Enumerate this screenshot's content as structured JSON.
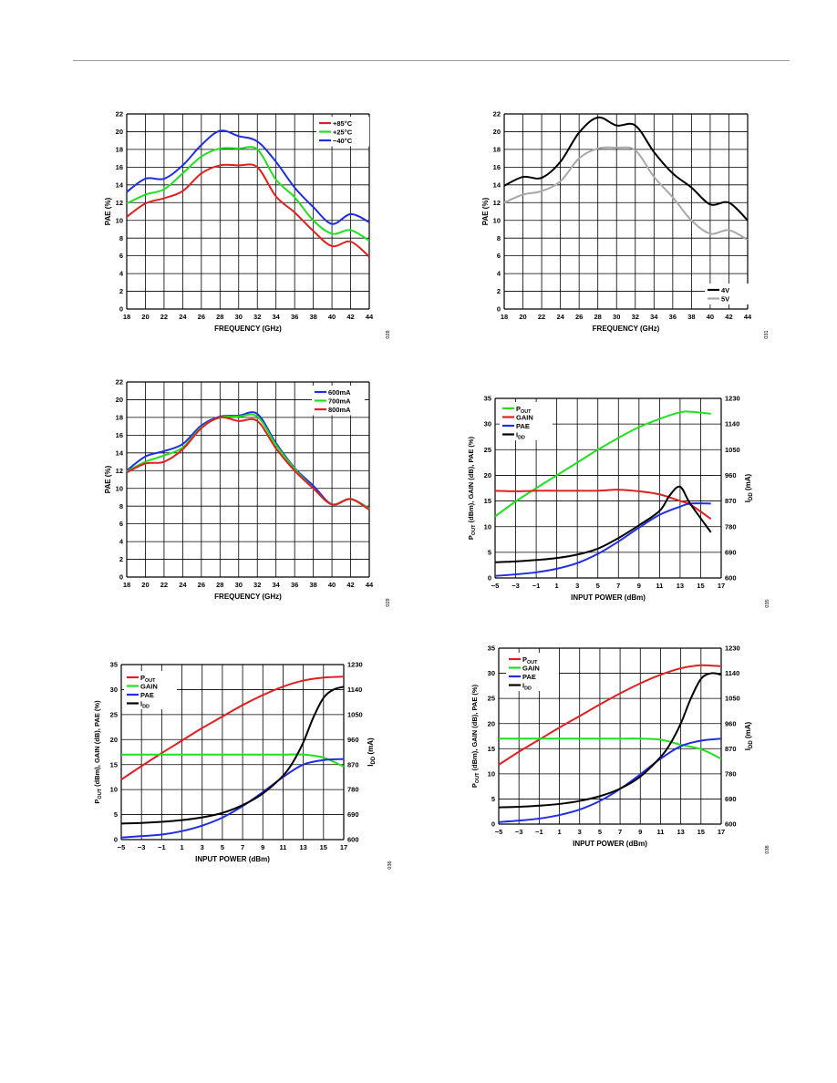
{
  "chart_data": [
    {
      "type": "line",
      "xlabel": "FREQUENCY (GHz)",
      "ylabel": "PAE (%)",
      "xlim": [
        18,
        44
      ],
      "ylim": [
        0,
        22
      ],
      "xticks": [
        18,
        20,
        22,
        24,
        26,
        28,
        30,
        32,
        34,
        36,
        38,
        40,
        42,
        44
      ],
      "yticks": [
        0,
        2,
        4,
        6,
        8,
        10,
        12,
        14,
        16,
        18,
        20,
        22
      ],
      "grid": true,
      "legend": "top-right",
      "fig_id": "028",
      "series": [
        {
          "name": "+85°C",
          "color": "#e02020",
          "x": [
            18,
            20,
            22,
            24,
            26,
            28,
            30,
            32,
            34,
            36,
            38,
            40,
            42,
            44
          ],
          "y": [
            10.4,
            11.9,
            12.5,
            13.3,
            15.3,
            16.2,
            16.2,
            16.0,
            12.7,
            10.9,
            8.8,
            7.1,
            7.6,
            5.9
          ]
        },
        {
          "name": "+25°C",
          "color": "#1fe01f",
          "x": [
            18,
            20,
            22,
            24,
            26,
            28,
            30,
            32,
            34,
            36,
            38,
            40,
            42,
            44
          ],
          "y": [
            11.9,
            12.9,
            13.5,
            15.3,
            17.2,
            18.1,
            18.1,
            18.0,
            14.6,
            12.6,
            10.0,
            8.5,
            8.9,
            7.7
          ]
        },
        {
          "name": "−40°C",
          "color": "#1f2fe0",
          "x": [
            18,
            20,
            22,
            24,
            26,
            28,
            30,
            32,
            34,
            36,
            38,
            40,
            42,
            44
          ],
          "y": [
            13.2,
            14.7,
            14.7,
            16.2,
            18.5,
            20.1,
            19.5,
            18.9,
            16.6,
            13.7,
            11.5,
            9.6,
            10.7,
            9.8
          ]
        }
      ]
    },
    {
      "type": "line",
      "xlabel": "FREQUENCY (GHz)",
      "ylabel": "PAE (%)",
      "xlim": [
        18,
        44
      ],
      "ylim": [
        0,
        22
      ],
      "xticks": [
        18,
        20,
        22,
        24,
        26,
        28,
        30,
        32,
        34,
        36,
        38,
        40,
        42,
        44
      ],
      "yticks": [
        0,
        2,
        4,
        6,
        8,
        10,
        12,
        14,
        16,
        18,
        20,
        22
      ],
      "grid": true,
      "legend": "bottom-right",
      "fig_id": "031",
      "series": [
        {
          "name": "4V",
          "color": "#000000",
          "x": [
            18,
            20,
            22,
            24,
            26,
            28,
            30,
            32,
            34,
            36,
            38,
            40,
            42,
            44
          ],
          "y": [
            13.9,
            14.9,
            14.8,
            16.6,
            19.9,
            21.6,
            20.7,
            20.7,
            17.7,
            15.3,
            13.7,
            11.8,
            12.0,
            10.0
          ]
        },
        {
          "name": "5V",
          "color": "#a8a8a8",
          "x": [
            18,
            20,
            22,
            24,
            26,
            28,
            30,
            32,
            34,
            36,
            38,
            40,
            42,
            44
          ],
          "y": [
            12.0,
            12.9,
            13.3,
            14.4,
            17.0,
            18.1,
            18.2,
            17.9,
            14.9,
            12.6,
            10.0,
            8.5,
            8.9,
            7.8
          ]
        }
      ]
    },
    {
      "type": "line",
      "xlabel": "FREQUENCY (GHz)",
      "ylabel": "PAE (%)",
      "xlim": [
        18,
        44
      ],
      "ylim": [
        0,
        22
      ],
      "xticks": [
        18,
        20,
        22,
        24,
        26,
        28,
        30,
        32,
        34,
        36,
        38,
        40,
        42,
        44
      ],
      "yticks": [
        0,
        2,
        4,
        6,
        8,
        10,
        12,
        14,
        16,
        18,
        20,
        22
      ],
      "grid": true,
      "legend": "top-right",
      "fig_id": "029",
      "series": [
        {
          "name": "600mA",
          "color": "#1f2fe0",
          "x": [
            18,
            20,
            22,
            24,
            26,
            28,
            30,
            32,
            34,
            36,
            38,
            40,
            42,
            44
          ],
          "y": [
            12.0,
            13.6,
            14.2,
            15.0,
            17.1,
            18.1,
            18.2,
            18.4,
            15.1,
            12.3,
            10.3,
            8.2,
            8.8,
            7.7
          ]
        },
        {
          "name": "700mA",
          "color": "#1fe01f",
          "x": [
            18,
            20,
            22,
            24,
            26,
            28,
            30,
            32,
            34,
            36,
            38,
            40,
            42,
            44
          ],
          "y": [
            11.9,
            13.0,
            13.7,
            14.6,
            16.9,
            18.0,
            18.1,
            18.1,
            14.9,
            12.2,
            10.0,
            8.2,
            8.8,
            7.7
          ]
        },
        {
          "name": "800mA",
          "color": "#e02020",
          "x": [
            18,
            20,
            22,
            24,
            26,
            28,
            30,
            32,
            34,
            36,
            38,
            40,
            42,
            44
          ],
          "y": [
            11.8,
            12.8,
            13.0,
            14.4,
            16.8,
            18.0,
            17.6,
            17.6,
            14.5,
            12.0,
            10.0,
            8.2,
            8.8,
            7.6
          ]
        }
      ]
    },
    {
      "type": "line",
      "xlabel": "INPUT POWER (dBm)",
      "ylabel": "POUT (dBm), GAIN (dB), PAE (%)",
      "y2label": "IDD (mA)",
      "xlim": [
        -5,
        17
      ],
      "ylim": [
        0,
        35
      ],
      "y2lim": [
        600,
        1230
      ],
      "xticks": [
        "−5",
        "−3",
        "−1",
        "1",
        "3",
        "5",
        "7",
        "9",
        "11",
        "13",
        "15",
        "17"
      ],
      "yticks": [
        0,
        5,
        10,
        15,
        20,
        25,
        30,
        35
      ],
      "y2ticks": [
        600,
        690,
        780,
        870,
        960,
        1050,
        1140,
        1230
      ],
      "grid": true,
      "legend": "top-left",
      "fig_id": "035",
      "series": [
        {
          "name": "POUT",
          "color": "#1fe01f",
          "axis": "left",
          "x": [
            -5,
            -3,
            -1,
            1,
            3,
            5,
            7,
            9,
            11,
            13,
            14,
            16
          ],
          "y": [
            12.0,
            14.9,
            17.5,
            20.0,
            22.5,
            25.0,
            27.3,
            29.4,
            31.0,
            32.3,
            32.4,
            32.0
          ]
        },
        {
          "name": "GAIN",
          "color": "#e02020",
          "axis": "left",
          "x": [
            -5,
            -3,
            -1,
            1,
            3,
            5,
            7,
            9,
            11,
            13,
            14,
            16
          ],
          "y": [
            17.0,
            16.9,
            17.0,
            17.0,
            17.0,
            17.0,
            17.2,
            16.9,
            16.3,
            15.0,
            14.3,
            11.5
          ]
        },
        {
          "name": "PAE",
          "color": "#1f2fe0",
          "axis": "left",
          "x": [
            -5,
            -3,
            -1,
            1,
            3,
            5,
            7,
            9,
            11,
            13,
            14,
            16
          ],
          "y": [
            0.4,
            0.7,
            1.1,
            1.8,
            2.9,
            4.7,
            7.1,
            9.8,
            12.3,
            13.9,
            14.5,
            14.5
          ]
        },
        {
          "name": "IDD",
          "color": "#000000",
          "axis": "right",
          "x": [
            -5,
            -3,
            -1,
            1,
            3,
            5,
            7,
            9,
            11,
            12,
            13,
            14,
            16
          ],
          "y": [
            655,
            658,
            663,
            670,
            682,
            703,
            740,
            785,
            835,
            890,
            920,
            860,
            760
          ]
        }
      ]
    },
    {
      "type": "line",
      "xlabel": "INPUT POWER (dBm)",
      "ylabel": "POUT (dBm), GAIN (dB), PAE (%)",
      "y2label": "IDD (mA)",
      "xlim": [
        -5,
        17
      ],
      "ylim": [
        0,
        35
      ],
      "y2lim": [
        600,
        1230
      ],
      "xticks": [
        "−5",
        "−3",
        "−1",
        "1",
        "3",
        "5",
        "7",
        "9",
        "11",
        "13",
        "15",
        "17"
      ],
      "yticks": [
        0,
        5,
        10,
        15,
        20,
        25,
        30,
        35
      ],
      "y2ticks": [
        600,
        690,
        780,
        870,
        960,
        1050,
        1140,
        1230
      ],
      "grid": true,
      "legend": "top-left",
      "fig_id": "036",
      "series": [
        {
          "name": "POUT",
          "color": "#e02020",
          "axis": "left",
          "x": [
            -5,
            -3,
            -1,
            1,
            3,
            5,
            7,
            9,
            11,
            13,
            15,
            17
          ],
          "y": [
            12.0,
            14.7,
            17.3,
            19.8,
            22.3,
            24.6,
            26.9,
            28.9,
            30.6,
            31.8,
            32.4,
            32.6
          ]
        },
        {
          "name": "GAIN",
          "color": "#1fe01f",
          "axis": "left",
          "x": [
            -5,
            -3,
            -1,
            1,
            3,
            5,
            7,
            9,
            11,
            13,
            15,
            17
          ],
          "y": [
            17.0,
            17.0,
            17.0,
            17.0,
            17.0,
            17.0,
            17.0,
            17.0,
            17.0,
            17.0,
            16.4,
            14.6
          ]
        },
        {
          "name": "PAE",
          "color": "#1f2fe0",
          "axis": "left",
          "x": [
            -5,
            -3,
            -1,
            1,
            3,
            5,
            7,
            9,
            11,
            13,
            15,
            17
          ],
          "y": [
            0.4,
            0.7,
            1.0,
            1.7,
            2.8,
            4.4,
            6.7,
            9.5,
            12.5,
            15.0,
            15.9,
            16.1
          ]
        },
        {
          "name": "IDD",
          "color": "#000000",
          "axis": "right",
          "x": [
            -5,
            -3,
            -1,
            1,
            3,
            5,
            7,
            9,
            11,
            12,
            13,
            14,
            15,
            16,
            17
          ],
          "y": [
            658,
            660,
            664,
            670,
            680,
            696,
            724,
            766,
            830,
            880,
            950,
            1040,
            1110,
            1140,
            1150
          ]
        }
      ]
    },
    {
      "type": "line",
      "xlabel": "INPUT POWER (dBm)",
      "ylabel": "POUT (dBm), GAIN (dB), PAE (%)",
      "y2label": "IDD (mA)",
      "xlim": [
        -5,
        17
      ],
      "ylim": [
        0,
        35
      ],
      "y2lim": [
        600,
        1230
      ],
      "xticks": [
        "−5",
        "−3",
        "−1",
        "1",
        "3",
        "5",
        "7",
        "9",
        "11",
        "13",
        "15",
        "17"
      ],
      "yticks": [
        0,
        5,
        10,
        15,
        20,
        25,
        30,
        35
      ],
      "y2ticks": [
        600,
        690,
        780,
        870,
        960,
        1050,
        1140,
        1230
      ],
      "grid": true,
      "legend": "top-left",
      "fig_id": "038",
      "series": [
        {
          "name": "POUT",
          "color": "#e02020",
          "axis": "left",
          "x": [
            -5,
            -3,
            -1,
            1,
            3,
            5,
            7,
            9,
            11,
            13,
            15,
            17
          ],
          "y": [
            11.8,
            14.4,
            16.8,
            19.2,
            21.5,
            23.8,
            26.0,
            28.0,
            29.7,
            31.0,
            31.6,
            31.4
          ]
        },
        {
          "name": "GAIN",
          "color": "#1fe01f",
          "axis": "left",
          "x": [
            -5,
            -3,
            -1,
            1,
            3,
            5,
            7,
            9,
            11,
            13,
            15,
            17
          ],
          "y": [
            17.0,
            17.0,
            17.0,
            17.0,
            17.0,
            17.0,
            17.0,
            17.0,
            16.8,
            15.8,
            14.9,
            13.0
          ]
        },
        {
          "name": "PAE",
          "color": "#1f2fe0",
          "axis": "left",
          "x": [
            -5,
            -3,
            -1,
            1,
            3,
            5,
            7,
            9,
            11,
            13,
            15,
            17
          ],
          "y": [
            0.4,
            0.7,
            1.1,
            1.8,
            2.9,
            4.6,
            7.0,
            9.9,
            13.0,
            15.5,
            16.6,
            17.0
          ]
        },
        {
          "name": "IDD",
          "color": "#000000",
          "axis": "right",
          "x": [
            -5,
            -3,
            -1,
            1,
            3,
            5,
            7,
            9,
            11,
            12,
            13,
            14,
            15,
            16,
            17
          ],
          "y": [
            660,
            662,
            666,
            672,
            683,
            700,
            727,
            770,
            840,
            890,
            960,
            1050,
            1120,
            1140,
            1135
          ]
        }
      ]
    }
  ]
}
